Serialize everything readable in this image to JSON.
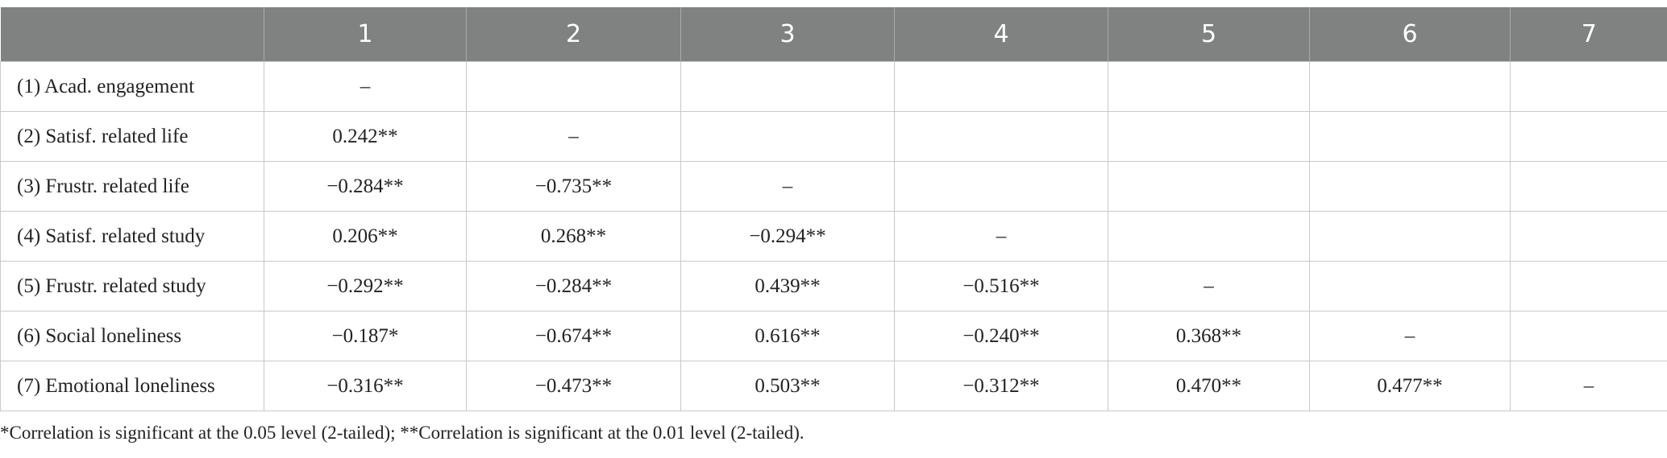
{
  "table": {
    "columns": [
      "1",
      "2",
      "3",
      "4",
      "5",
      "6",
      "7"
    ],
    "rows": [
      {
        "label": "(1) Acad. engagement",
        "cells": [
          "–"
        ]
      },
      {
        "label": "(2) Satisf. related life",
        "cells": [
          "0.242**",
          "–"
        ]
      },
      {
        "label": "(3) Frustr. related life",
        "cells": [
          "−0.284**",
          "−0.735**",
          "–"
        ]
      },
      {
        "label": "(4) Satisf. related study",
        "cells": [
          "0.206**",
          "0.268**",
          "−0.294**",
          "–"
        ]
      },
      {
        "label": "(5) Frustr. related study",
        "cells": [
          "−0.292**",
          "−0.284**",
          "0.439**",
          "−0.516**",
          "–"
        ]
      },
      {
        "label": "(6) Social loneliness",
        "cells": [
          "−0.187*",
          "−0.674**",
          "0.616**",
          "−0.240**",
          "0.368**",
          "–"
        ]
      },
      {
        "label": "(7) Emotional loneliness",
        "cells": [
          "−0.316**",
          "−0.473**",
          "0.503**",
          "−0.312**",
          "0.470**",
          "0.477**",
          "–"
        ]
      }
    ],
    "footnote": "*Correlation is significant at the 0.05 level (2-tailed); **Correlation is significant at the 0.01 level (2-tailed)."
  }
}
